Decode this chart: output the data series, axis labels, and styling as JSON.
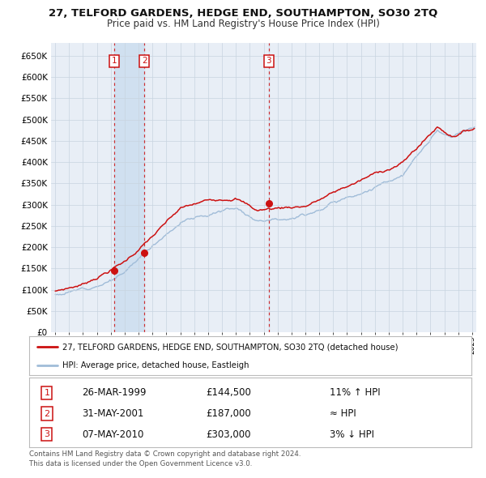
{
  "title": "27, TELFORD GARDENS, HEDGE END, SOUTHAMPTON, SO30 2TQ",
  "subtitle": "Price paid vs. HM Land Registry's House Price Index (HPI)",
  "xlim": [
    1994.7,
    2025.3
  ],
  "ylim": [
    0,
    680000
  ],
  "yticks": [
    0,
    50000,
    100000,
    150000,
    200000,
    250000,
    300000,
    350000,
    400000,
    450000,
    500000,
    550000,
    600000,
    650000
  ],
  "ytick_labels": [
    "£0",
    "£50K",
    "£100K",
    "£150K",
    "£200K",
    "£250K",
    "£300K",
    "£350K",
    "£400K",
    "£450K",
    "£500K",
    "£550K",
    "£600K",
    "£650K"
  ],
  "xtick_years": [
    1995,
    1996,
    1997,
    1998,
    1999,
    2000,
    2001,
    2002,
    2003,
    2004,
    2005,
    2006,
    2007,
    2008,
    2009,
    2010,
    2011,
    2012,
    2013,
    2014,
    2015,
    2016,
    2017,
    2018,
    2019,
    2020,
    2021,
    2022,
    2023,
    2024,
    2025
  ],
  "sale_dates": [
    1999.23,
    2001.42,
    2010.36
  ],
  "sale_prices": [
    144500,
    187000,
    303000
  ],
  "sale_labels": [
    "1",
    "2",
    "3"
  ],
  "sale_date_strs": [
    "26-MAR-1999",
    "31-MAY-2001",
    "07-MAY-2010"
  ],
  "sale_price_strs": [
    "£144,500",
    "£187,000",
    "£303,000"
  ],
  "sale_rel_strs": [
    "11% ↑ HPI",
    "≈ HPI",
    "3% ↓ HPI"
  ],
  "hpi_color": "#a0bcd8",
  "price_color": "#cc1111",
  "grid_color": "#c8d4e0",
  "plot_bg_color": "#e8eef6",
  "shade_color": "#d0e0f0",
  "legend_label_price": "27, TELFORD GARDENS, HEDGE END, SOUTHAMPTON, SO30 2TQ (detached house)",
  "legend_label_hpi": "HPI: Average price, detached house, Eastleigh",
  "footer1": "Contains HM Land Registry data © Crown copyright and database right 2024.",
  "footer2": "This data is licensed under the Open Government Licence v3.0."
}
